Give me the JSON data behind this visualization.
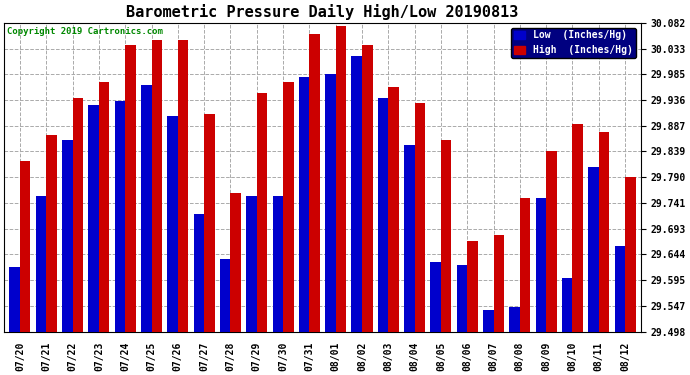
{
  "title": "Barometric Pressure Daily High/Low 20190813",
  "copyright": "Copyright 2019 Cartronics.com",
  "background_color": "#ffffff",
  "plot_bg_color": "#ffffff",
  "grid_color": "#aaaaaa",
  "bar_width": 0.4,
  "dates": [
    "07/20",
    "07/21",
    "07/22",
    "07/23",
    "07/24",
    "07/25",
    "07/26",
    "07/27",
    "07/28",
    "07/29",
    "07/30",
    "07/31",
    "08/01",
    "08/02",
    "08/03",
    "08/04",
    "08/05",
    "08/06",
    "08/07",
    "08/08",
    "08/09",
    "08/10",
    "08/11",
    "08/12"
  ],
  "low": [
    29.62,
    29.755,
    29.86,
    29.927,
    29.935,
    29.965,
    29.905,
    29.72,
    29.635,
    29.755,
    29.755,
    29.98,
    29.985,
    30.02,
    29.94,
    29.85,
    29.63,
    29.625,
    29.54,
    29.545,
    29.75,
    29.6,
    29.81,
    29.66
  ],
  "high": [
    29.82,
    29.87,
    29.94,
    29.97,
    30.04,
    30.05,
    30.05,
    29.91,
    29.76,
    29.95,
    29.97,
    30.06,
    30.075,
    30.04,
    29.96,
    29.93,
    29.86,
    29.67,
    29.68,
    29.75,
    29.84,
    29.89,
    29.875,
    29.79
  ],
  "low_color": "#0000cc",
  "high_color": "#cc0000",
  "ylim_min": 29.498,
  "ylim_max": 30.082,
  "yticks": [
    29.498,
    29.547,
    29.595,
    29.644,
    29.693,
    29.741,
    29.79,
    29.839,
    29.887,
    29.936,
    29.985,
    30.033,
    30.082
  ],
  "legend_low_label": "Low  (Inches/Hg)",
  "legend_high_label": "High  (Inches/Hg)",
  "title_fontsize": 11,
  "tick_fontsize": 7,
  "legend_fontsize": 7,
  "copyright_fontsize": 6.5
}
